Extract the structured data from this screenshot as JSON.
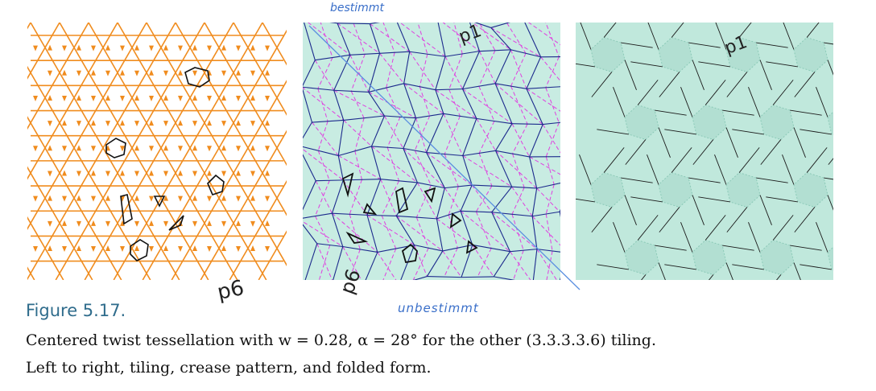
{
  "figure": {
    "label": "Figure 5.17.",
    "caption_line_1": "Centered twist tessellation with w = 0.28, α = 28° for the other (3.3.3.3.6) tiling.",
    "caption_line_2": "Left to right, tiling, crease pattern, and folded form."
  },
  "annotations": {
    "bestimmt": "bestimmt",
    "unbestimmt": "unbestimmt",
    "p6_left": "p6",
    "p6_mid": "p6",
    "p1_mid": "p1",
    "p1_right": "p1"
  },
  "colors": {
    "tiling_orange": "#f08c1e",
    "crease_bg": "#c8ece2",
    "mountain_blue": "#1c2a8c",
    "valley_magenta": "#e040e0",
    "folded_bg": "#c0e8dc",
    "folded_dark": "#8ccab8",
    "pen_blue": "#3a6fc9",
    "figure_label": "#2f6c8c"
  }
}
